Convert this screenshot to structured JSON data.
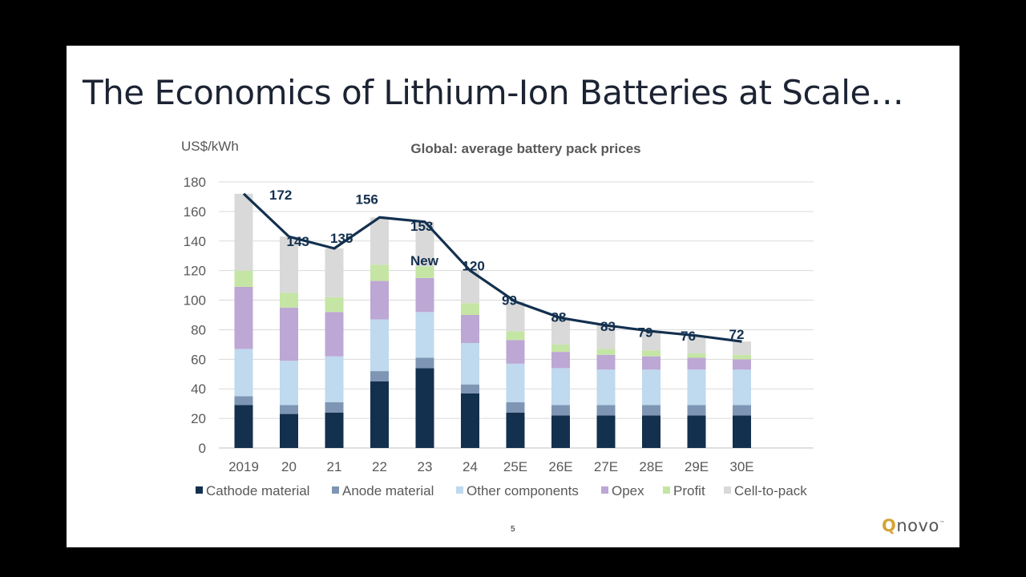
{
  "slide": {
    "title": "The Economics of Lithium-Ion Batteries at Scale…",
    "page_number": "5",
    "logo_text": "novo",
    "logo_mark": "Q",
    "logo_tm": "™"
  },
  "chart_data": {
    "type": "bar",
    "stacked": true,
    "title": "Global: average battery pack prices",
    "ylabel": "US$/kWh",
    "xlabel": "",
    "ylim": [
      0,
      180
    ],
    "yticks": [
      0,
      20,
      40,
      60,
      80,
      100,
      120,
      140,
      160,
      180
    ],
    "grid": true,
    "legend_position": "bottom",
    "categories": [
      "2019",
      "20",
      "21",
      "22",
      "23",
      "24",
      "25E",
      "26E",
      "27E",
      "28E",
      "29E",
      "30E"
    ],
    "series": [
      {
        "name": "Cathode material",
        "color": "#13304f",
        "values": [
          29,
          23,
          24,
          45,
          54,
          37,
          24,
          22,
          22,
          22,
          22,
          22
        ]
      },
      {
        "name": "Anode material",
        "color": "#7e96b4",
        "values": [
          6,
          6,
          7,
          7,
          7,
          6,
          7,
          7,
          7,
          7,
          7,
          7
        ]
      },
      {
        "name": "Other components",
        "color": "#bfd9ee",
        "values": [
          32,
          30,
          31,
          35,
          31,
          28,
          26,
          25,
          24,
          24,
          24,
          24
        ]
      },
      {
        "name": "Opex",
        "color": "#bda7d4",
        "values": [
          42,
          36,
          30,
          26,
          23,
          19,
          16,
          11,
          10,
          9,
          8,
          7
        ]
      },
      {
        "name": "Profit",
        "color": "#c5e5a5",
        "values": [
          11,
          10,
          10,
          11,
          8,
          8,
          6,
          5,
          4,
          4,
          3,
          3
        ]
      },
      {
        "name": "Cell-to-pack",
        "color": "#d9d9d9",
        "values": [
          52,
          38,
          33,
          32,
          30,
          22,
          20,
          18,
          16,
          13,
          12,
          9
        ]
      }
    ],
    "line": {
      "name": "Average pack price",
      "color": "#13304f",
      "values": [
        172,
        143,
        135,
        156,
        153,
        120,
        99,
        88,
        83,
        79,
        76,
        72
      ]
    },
    "data_labels": [
      "172",
      "143",
      "135",
      "156",
      "153",
      "120",
      "99",
      "88",
      "83",
      "79",
      "76",
      "72"
    ],
    "annotations": [
      {
        "text": "New",
        "category": "23"
      }
    ]
  }
}
